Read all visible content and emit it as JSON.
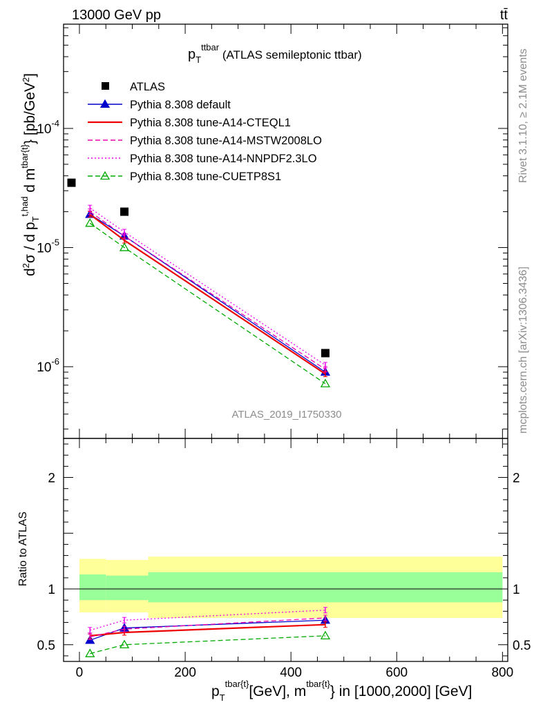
{
  "header": {
    "left": "13000 GeV pp",
    "right": "tt̄"
  },
  "side_labels": {
    "rivet": "Rivet 3.1.10, ≥ 2.1M events",
    "mcplots": "mcplots.cern.ch [arXiv:1306.3436]"
  },
  "analysis_id": "ATLAS_2019_I1750330",
  "chart_data": [
    {
      "type": "line",
      "panel": "main",
      "title": {
        "main": "p",
        "sub": "T",
        "sup": "ttbar",
        "rest": " (ATLAS semileptonic ttbar)"
      },
      "ylabel": "d²σ / d p_T^{t,had} d m^{tbar{t}} [pb/GeV²]",
      "yscale": "log",
      "ylim": [
        2.5e-07,
        0.00075
      ],
      "xlim": [
        -30,
        810
      ],
      "grid": false,
      "legend_position": "top-left",
      "ytick_labels": [
        {
          "base": "10",
          "exp": "-4",
          "value": 0.0001
        },
        {
          "base": "10",
          "exp": "-5",
          "value": 1e-05
        },
        {
          "base": "10",
          "exp": "-6",
          "value": 1e-06
        }
      ],
      "data": {
        "name": "ATLAS",
        "x": [
          -15,
          85,
          465
        ],
        "y": [
          3.5e-05,
          2e-05,
          1.3e-06
        ]
      },
      "series": [
        {
          "name": "Pythia 8.308 default",
          "color": "#0000cc",
          "dash": "solid",
          "marker": "triangle-filled",
          "x": [
            20,
            85,
            465
          ],
          "y": [
            1.9e-05,
            1.25e-05,
            9e-07
          ]
        },
        {
          "name": "Pythia 8.308 tune-A14-CTEQL1",
          "color": "#ee0000",
          "dash": "solid",
          "marker": "none",
          "x": [
            20,
            85,
            465
          ],
          "y": [
            1.9e-05,
            1.15e-05,
            8.7e-07
          ]
        },
        {
          "name": "Pythia 8.308 tune-A14-MSTW2008LO",
          "color": "#ee00aa",
          "dash": "dashed",
          "marker": "none",
          "x": [
            20,
            85,
            465
          ],
          "y": [
            2e-05,
            1.25e-05,
            9.5e-07
          ]
        },
        {
          "name": "Pythia 8.308 tune-A14-NNPDF2.3LO",
          "color": "#ee00ee",
          "dash": "dotted",
          "marker": "none",
          "x": [
            20,
            85,
            465
          ],
          "y": [
            2.15e-05,
            1.35e-05,
            1.03e-06
          ]
        },
        {
          "name": "Pythia 8.308 tune-CUETP8S1",
          "color": "#00aa00",
          "dash": "dashed",
          "marker": "triangle-open",
          "x": [
            20,
            85,
            465
          ],
          "y": [
            1.6e-05,
            1e-05,
            7.2e-07
          ]
        }
      ]
    },
    {
      "type": "line",
      "panel": "ratio",
      "ylabel": "Ratio to ATLAS",
      "xlabel": {
        "p": "p",
        "sub": "T",
        "sup1": "tbar{t}",
        "mid": "[GeV], m",
        "sup2": "tbar{t}",
        "rest": "} in [1000,2000] [GeV]"
      },
      "ylim": [
        0.35,
        2.35
      ],
      "xlim": [
        -30,
        810
      ],
      "yticks": [
        0.5,
        1,
        2
      ],
      "ytick_labels": [
        "0.5",
        "1",
        "2"
      ],
      "xticks": [
        0,
        200,
        400,
        600,
        800
      ],
      "xtick_labels": [
        "0",
        "200",
        "400",
        "600",
        "800"
      ],
      "bands": [
        {
          "x0": 0,
          "x1": 50,
          "inner": [
            0.9,
            1.13
          ],
          "outer": [
            0.79,
            1.27
          ]
        },
        {
          "x0": 50,
          "x1": 130,
          "inner": [
            0.9,
            1.12
          ],
          "outer": [
            0.79,
            1.26
          ]
        },
        {
          "x0": 130,
          "x1": 800,
          "inner": [
            0.88,
            1.15
          ],
          "outer": [
            0.74,
            1.29
          ]
        }
      ],
      "series": [
        {
          "name": "Pythia 8.308 default",
          "x": [
            20,
            85,
            465
          ],
          "y": [
            0.54,
            0.65,
            0.72
          ]
        },
        {
          "name": "Pythia 8.308 tune-A14-CTEQL1",
          "x": [
            20,
            85,
            465
          ],
          "y": [
            0.58,
            0.61,
            0.68
          ]
        },
        {
          "name": "Pythia 8.308 tune-A14-MSTW2008LO",
          "x": [
            20,
            85,
            465
          ],
          "y": [
            0.57,
            0.64,
            0.74
          ]
        },
        {
          "name": "Pythia 8.308 tune-A14-NNPDF2.3LO",
          "x": [
            20,
            85,
            465
          ],
          "y": [
            0.63,
            0.72,
            0.81
          ]
        },
        {
          "name": "Pythia 8.308 tune-CUETP8S1",
          "x": [
            20,
            85,
            465
          ],
          "y": [
            0.42,
            0.5,
            0.58
          ]
        }
      ]
    }
  ]
}
